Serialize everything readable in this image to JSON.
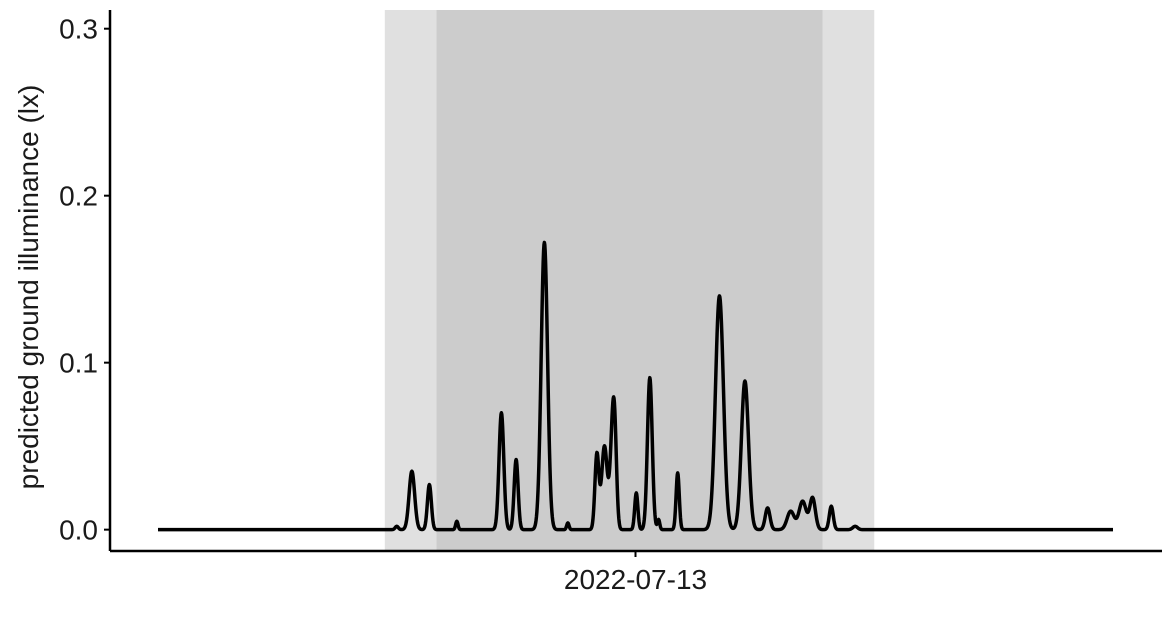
{
  "chart_data": {
    "type": "line",
    "title": "",
    "xlabel": "",
    "ylabel": "predicted ground illuminance (lx)",
    "x_unit": "hours since 2022-07-12 12:00",
    "xlim": [
      0,
      24
    ],
    "ylim": [
      -0.005,
      0.31
    ],
    "x_tick_labels": [
      {
        "at": 12,
        "label": "2022-07-13"
      }
    ],
    "y_ticks": [
      0.0,
      0.1,
      0.2,
      0.3
    ],
    "y_tick_labels": [
      "0.0",
      "0.1",
      "0.2",
      "0.3"
    ],
    "grid": false,
    "shaded_bands": [
      {
        "name": "twilight",
        "x_start": 5.7,
        "x_end": 18.0,
        "color": "#e0e0e0"
      },
      {
        "name": "night",
        "x_start": 7.0,
        "x_end": 16.7,
        "color": "#cccccc"
      }
    ],
    "series": [
      {
        "name": "",
        "color": "#000000",
        "peaks": [
          {
            "x": 6.0,
            "y": 0.002,
            "w": 0.04
          },
          {
            "x": 6.38,
            "y": 0.035,
            "w": 0.07
          },
          {
            "x": 6.82,
            "y": 0.027,
            "w": 0.05
          },
          {
            "x": 7.51,
            "y": 0.005,
            "w": 0.03
          },
          {
            "x": 8.63,
            "y": 0.07,
            "w": 0.06
          },
          {
            "x": 9.0,
            "y": 0.042,
            "w": 0.05
          },
          {
            "x": 9.71,
            "y": 0.172,
            "w": 0.08
          },
          {
            "x": 10.3,
            "y": 0.004,
            "w": 0.03
          },
          {
            "x": 11.03,
            "y": 0.045,
            "w": 0.05
          },
          {
            "x": 11.22,
            "y": 0.05,
            "w": 0.07
          },
          {
            "x": 11.42,
            "y": 0.052,
            "w": 0.06
          },
          {
            "x": 11.48,
            "y": 0.04,
            "w": 0.05
          },
          {
            "x": 12.02,
            "y": 0.022,
            "w": 0.04
          },
          {
            "x": 12.36,
            "y": 0.091,
            "w": 0.06
          },
          {
            "x": 12.58,
            "y": 0.006,
            "w": 0.03
          },
          {
            "x": 13.06,
            "y": 0.034,
            "w": 0.04
          },
          {
            "x": 14.11,
            "y": 0.14,
            "w": 0.1
          },
          {
            "x": 14.75,
            "y": 0.089,
            "w": 0.09
          },
          {
            "x": 15.32,
            "y": 0.013,
            "w": 0.06
          },
          {
            "x": 15.9,
            "y": 0.011,
            "w": 0.09
          },
          {
            "x": 16.2,
            "y": 0.017,
            "w": 0.09
          },
          {
            "x": 16.45,
            "y": 0.019,
            "w": 0.07
          },
          {
            "x": 16.92,
            "y": 0.014,
            "w": 0.05
          },
          {
            "x": 17.52,
            "y": 0.002,
            "w": 0.06
          }
        ]
      }
    ]
  }
}
